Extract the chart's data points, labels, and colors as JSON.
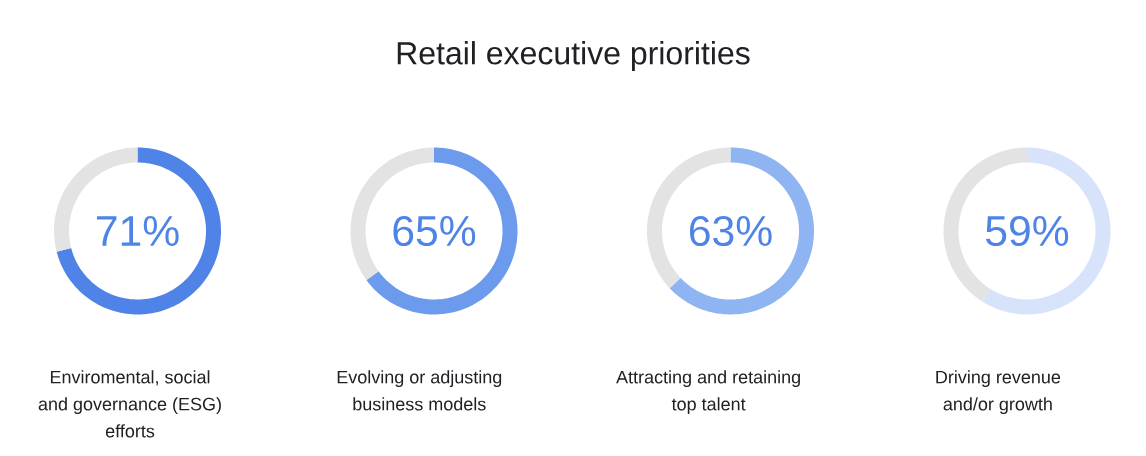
{
  "chart_data": [
    {
      "type": "donut",
      "title": "Retail executive priorities",
      "categories": [
        "Enviromental, social and governance (ESG) efforts",
        null
      ],
      "values": [
        71,
        29
      ],
      "colors": [
        "#4f83e8",
        "#e3e3e3"
      ],
      "value_labels": [
        "71%",
        null
      ]
    },
    {
      "type": "donut",
      "categories": [
        "Evolving or adjusting business models",
        null
      ],
      "values": [
        65,
        35
      ],
      "colors": [
        "#6c9bee",
        "#e3e3e3"
      ],
      "value_labels": [
        "65%",
        null
      ]
    },
    {
      "type": "donut",
      "categories": [
        "Attracting and retaining top talent",
        null
      ],
      "values": [
        63,
        37
      ],
      "colors": [
        "#8eb4f2",
        "#e3e3e3"
      ],
      "value_labels": [
        "63%",
        null
      ]
    },
    {
      "type": "donut",
      "categories": [
        "Driving revenue and/or growth",
        null
      ],
      "values": [
        59,
        41
      ],
      "colors": [
        "#d6e3fa",
        "#e3e3e3"
      ],
      "value_labels": [
        "59%",
        null
      ]
    }
  ]
}
